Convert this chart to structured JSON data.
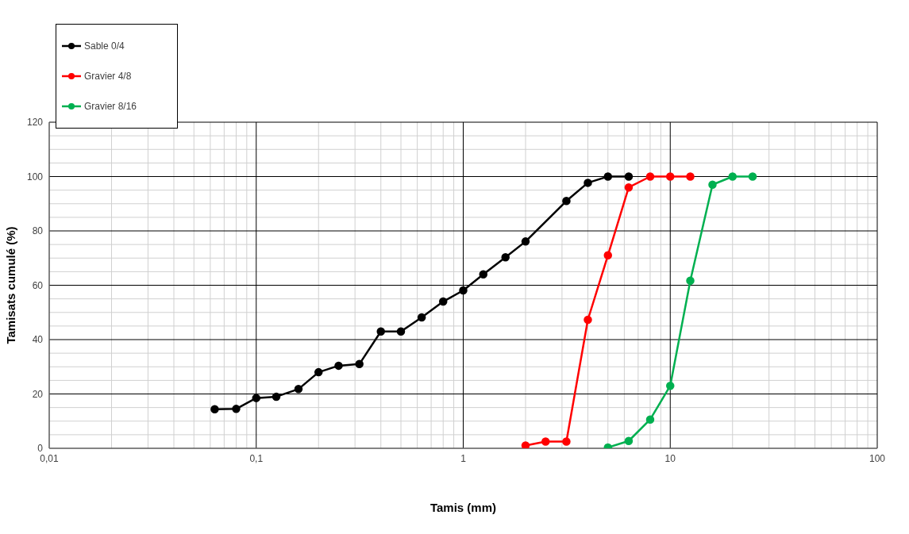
{
  "chart_data": {
    "type": "line",
    "xlabel": "Tamis (mm)",
    "ylabel": "Tamisats  cumulé  (%)",
    "log": "x",
    "grid": true,
    "legend": "top left",
    "marker": "circle",
    "line_style": "solid",
    "xlim": [
      0.01,
      100
    ],
    "xticks": [
      {
        "value": 0.01,
        "label": "0,01"
      },
      {
        "value": 0.1,
        "label": "0,1"
      },
      1,
      10,
      100
    ],
    "ylim": [
      0,
      120
    ],
    "yticks": [
      0,
      20,
      40,
      60,
      80,
      100,
      120
    ],
    "series": [
      {
        "name": "Sable 0/4",
        "color": "#000000",
        "x": [
          0.063,
          0.08,
          0.1,
          0.125,
          0.16,
          0.2,
          0.25,
          0.315,
          0.4,
          0.5,
          0.63,
          0.8,
          1,
          1.25,
          1.6,
          2,
          3.15,
          4,
          5,
          6.3
        ],
        "values": [
          14.4,
          14.5,
          18.5,
          19,
          21.8,
          28,
          30.4,
          31,
          43,
          43,
          48.2,
          54,
          58.1,
          64,
          70.3,
          76.1,
          91,
          97.7,
          100,
          100
        ]
      },
      {
        "name": "Gravier 4/8",
        "color": "#ff0000",
        "x": [
          2,
          2.5,
          3.15,
          4,
          5,
          6.3,
          8,
          10,
          12.5
        ],
        "values": [
          1,
          2.5,
          2.5,
          47.3,
          71,
          96,
          100,
          100,
          100
        ]
      },
      {
        "name": "Gravier 8/16",
        "color": "#00b050",
        "x": [
          5,
          6.3,
          8,
          10,
          12.5,
          16,
          20,
          25
        ],
        "values": [
          0.3,
          2.7,
          10.6,
          23,
          61.7,
          97,
          100,
          100
        ]
      }
    ]
  }
}
